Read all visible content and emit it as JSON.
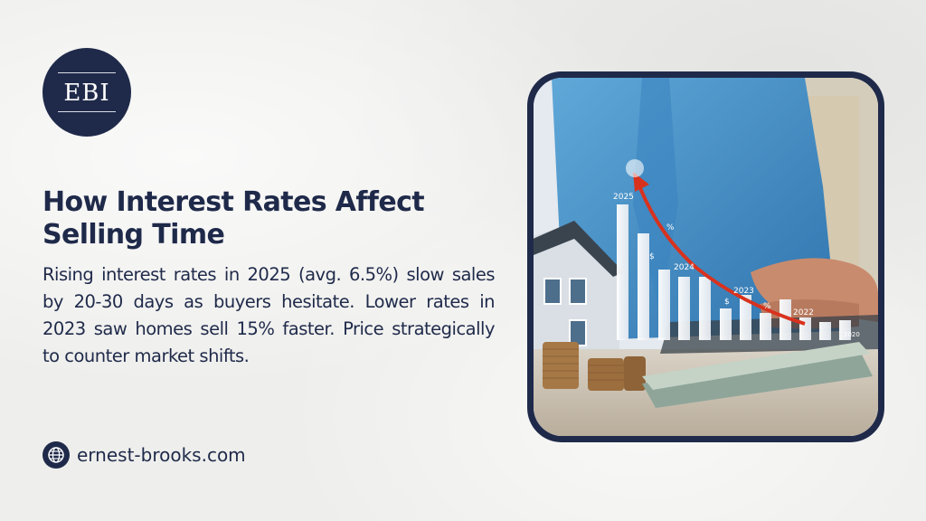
{
  "brand": {
    "logo_text": "EBI"
  },
  "headline": "How Interest Rates Affect Selling Time",
  "body": "Rising interest rates in 2025 (avg. 6.5%) slow sales by 20-30 days as buyers hesitate. Lower rates in 2023 saw homes sell 15% faster. Price strategically to counter market shifts.",
  "website": {
    "icon": "globe-icon",
    "url": "ernest-brooks.com"
  },
  "photo": {
    "year_labels": [
      "2025",
      "2024",
      "2023",
      "2022",
      "2020"
    ],
    "symbols": [
      "%",
      "$",
      "$",
      "%"
    ]
  },
  "colors": {
    "navy": "#1f2a4a",
    "arrow": "#d8321e",
    "background": "#eeeeec"
  }
}
